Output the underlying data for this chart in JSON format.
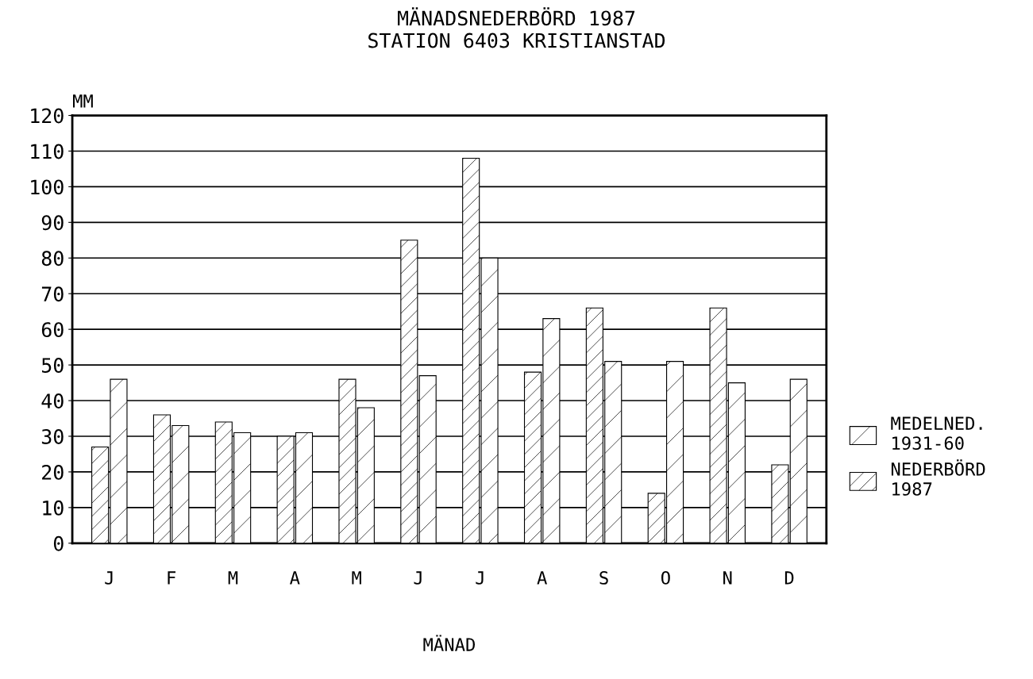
{
  "chart_data": {
    "type": "bar",
    "title": "MÄNADSNEDERBÖRD 1987\nSTATION 6403 KRISTIANSTAD",
    "xlabel": "MÄNAD",
    "ylabel": "MM",
    "categories": [
      "J",
      "F",
      "M",
      "A",
      "M",
      "J",
      "J",
      "A",
      "S",
      "O",
      "N",
      "D"
    ],
    "series": [
      {
        "name": "NEDERBÖRD\n1987",
        "color": "#000000",
        "values": [
          27,
          36,
          34,
          30,
          46,
          85,
          108,
          48,
          66,
          14,
          66,
          22
        ]
      },
      {
        "name": "MEDELNED.\n1931-60",
        "color": "#000000",
        "values": [
          46,
          33,
          31,
          31,
          38,
          47,
          80,
          63,
          51,
          51,
          45,
          46
        ]
      }
    ],
    "ylim": [
      0,
      120
    ],
    "yticks": [
      0,
      10,
      20,
      30,
      40,
      50,
      60,
      70,
      80,
      90,
      100,
      110,
      120
    ],
    "grid": "y",
    "legend": "right"
  }
}
